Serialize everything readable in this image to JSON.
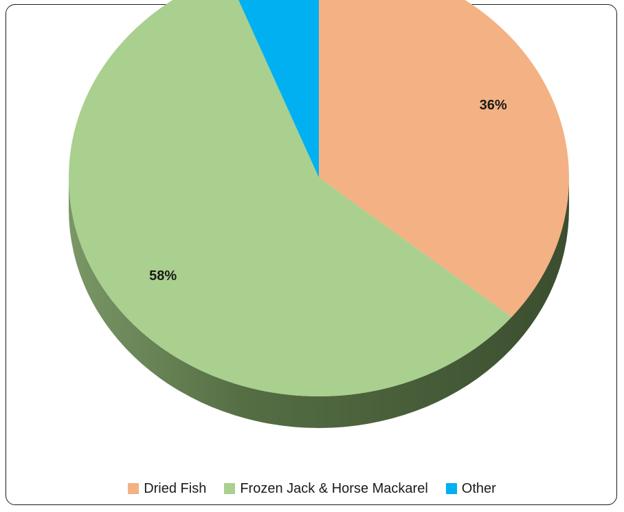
{
  "chart_data": {
    "type": "pie",
    "title": "",
    "legend_position": "bottom",
    "slices": [
      {
        "name": "Dried Fish",
        "value": 36,
        "label": "36%",
        "color": "#F4B183"
      },
      {
        "name": "Frozen Jack & Horse Mackarel",
        "value": 58,
        "label": "58%",
        "color": "#A9D08E"
      },
      {
        "name": "Other",
        "value": 6,
        "label": "6%",
        "color": "#00B0F0"
      }
    ]
  },
  "colors": {
    "side_dark": "#3E5231",
    "side_light": "#6F8A5C",
    "frame_border": "#1a1a1a"
  }
}
